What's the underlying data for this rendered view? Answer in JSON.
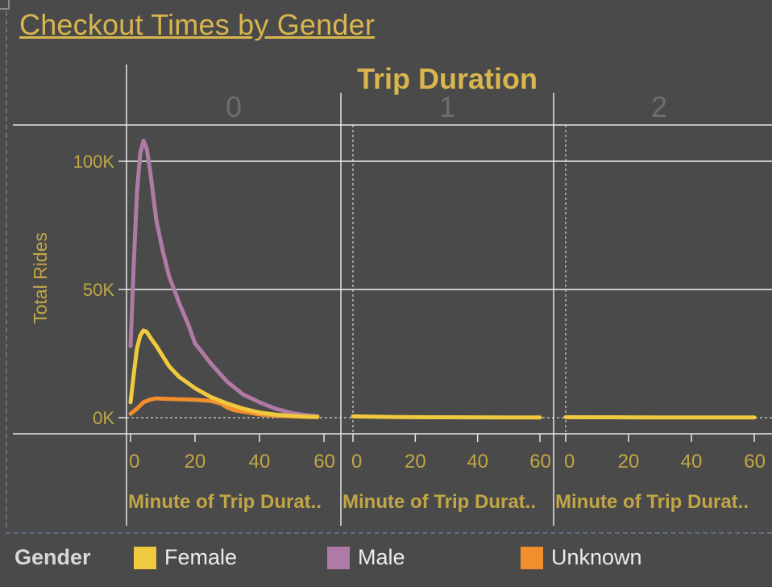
{
  "title": "Checkout Times by Gender",
  "column_header": "Trip Duration",
  "panel_labels": [
    "0",
    "1",
    "2"
  ],
  "y_axis_title": "Total Rides",
  "x_axis_title": "Minute of Trip Durat..",
  "legend": {
    "title": "Gender",
    "items": [
      {
        "label": "Female",
        "color": "#f0c93e"
      },
      {
        "label": "Male",
        "color": "#b07aa6"
      },
      {
        "label": "Unknown",
        "color": "#f28e2b"
      }
    ]
  },
  "chart_data": {
    "type": "line",
    "title": "Checkout Times by Gender",
    "column_header": "Trip Duration",
    "ylabel": "Total Rides",
    "xlabel": "Minute of Trip Durat..",
    "ylim": [
      0,
      110000
    ],
    "xlim": [
      0,
      60
    ],
    "y_ticks": [
      0,
      50000,
      100000
    ],
    "y_tick_labels": [
      "0K",
      "50K",
      "100K"
    ],
    "x_ticks": [
      0,
      20,
      40,
      60
    ],
    "x_tick_labels": [
      "0",
      "20",
      "40",
      "60"
    ],
    "grid": true,
    "legend_position": "bottom",
    "panels": [
      {
        "label": "0",
        "series": [
          {
            "name": "Male",
            "color": "#b07aa6",
            "x": [
              0,
              1,
              2,
              3,
              4,
              5,
              6,
              7,
              8,
              10,
              12,
              15,
              18,
              20,
              25,
              30,
              35,
              40,
              45,
              50,
              55,
              58
            ],
            "y": [
              28000,
              60000,
              88000,
              103000,
              108000,
              105000,
              97000,
              87000,
              77000,
              65000,
              55000,
              45000,
              36000,
              29000,
              21000,
              14000,
              9000,
              6000,
              3500,
              1800,
              900,
              600
            ]
          },
          {
            "name": "Female",
            "color": "#f0c93e",
            "x": [
              0,
              1,
              2,
              3,
              4,
              5,
              6,
              8,
              10,
              12,
              15,
              20,
              25,
              30,
              35,
              40,
              45,
              50,
              55,
              58
            ],
            "y": [
              6000,
              17000,
              27000,
              32000,
              34000,
              33500,
              31500,
              28000,
              24000,
              20000,
              16000,
              11500,
              8000,
              5500,
              3500,
              2000,
              1200,
              700,
              400,
              300
            ]
          },
          {
            "name": "Unknown",
            "color": "#f28e2b",
            "x": [
              0,
              2,
              4,
              6,
              8,
              10,
              15,
              20,
              25,
              28,
              30,
              32,
              35,
              40,
              45,
              50,
              55,
              58
            ],
            "y": [
              1500,
              3500,
              6000,
              7000,
              7500,
              7400,
              7200,
              7000,
              6500,
              5500,
              4000,
              3000,
              2300,
              1300,
              800,
              500,
              300,
              200
            ]
          }
        ]
      },
      {
        "label": "1",
        "series": [
          {
            "name": "Female",
            "color": "#f0c93e",
            "x": [
              0,
              10,
              20,
              30,
              40,
              50,
              60
            ],
            "y": [
              500,
              300,
              200,
              150,
              120,
              100,
              100
            ]
          }
        ]
      },
      {
        "label": "2",
        "series": [
          {
            "name": "Female",
            "color": "#f0c93e",
            "x": [
              0,
              10,
              20,
              30,
              40,
              50,
              60
            ],
            "y": [
              200,
              150,
              120,
              100,
              100,
              100,
              100
            ]
          }
        ]
      }
    ]
  }
}
